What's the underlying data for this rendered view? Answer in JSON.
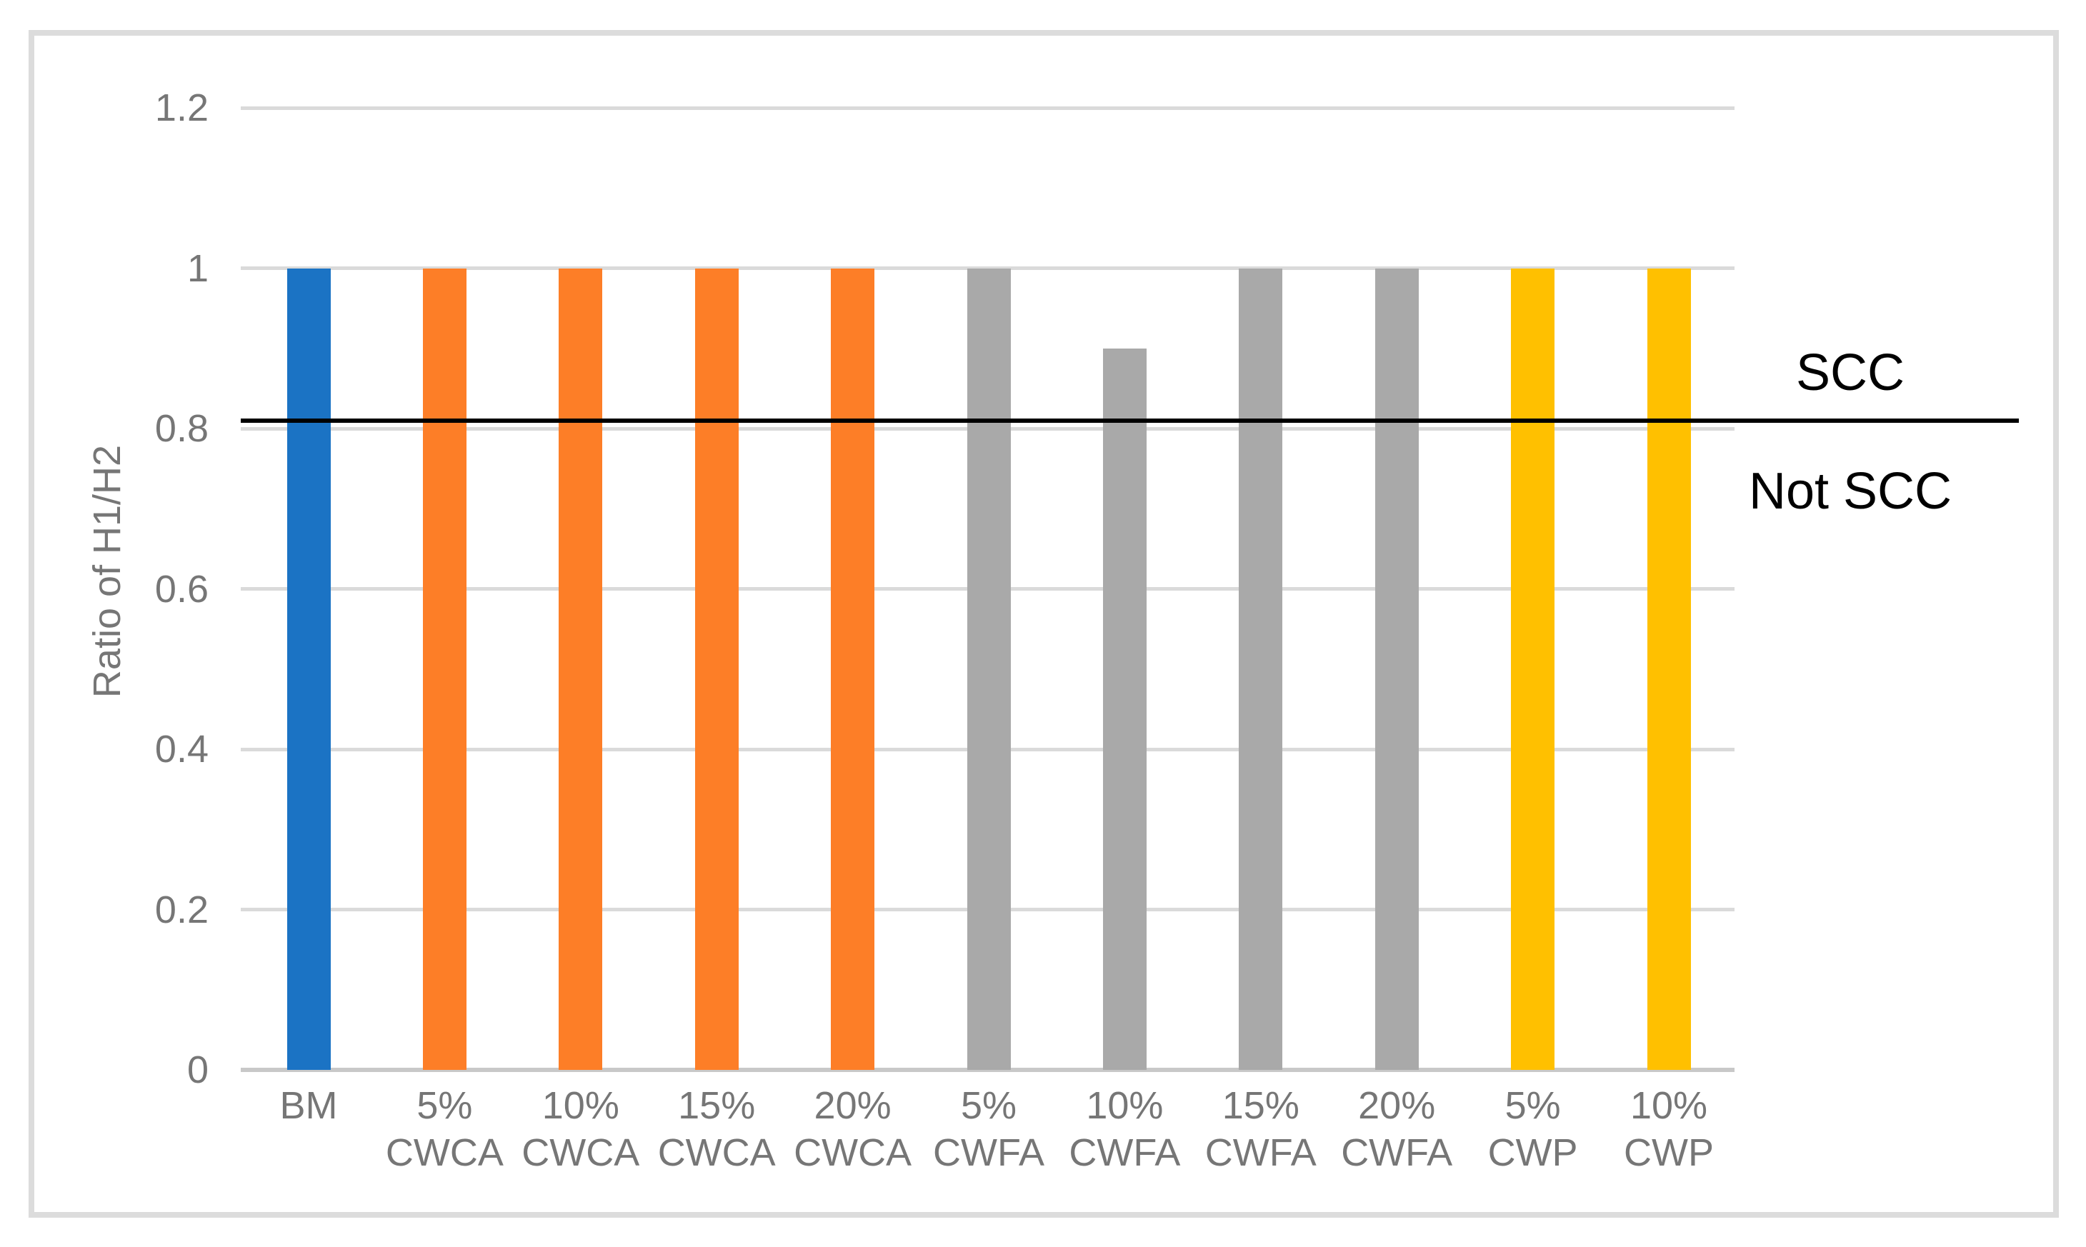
{
  "chart_data": {
    "type": "bar",
    "title": "",
    "xlabel": "",
    "ylabel": "Ratio of H1/H2",
    "ylim": [
      0,
      1.2
    ],
    "yticks": [
      0,
      0.2,
      0.4,
      0.6,
      0.8,
      1,
      1.2
    ],
    "ytick_labels": [
      "0",
      "0.2",
      "0.4",
      "0.6",
      "0.8",
      "1",
      "1.2"
    ],
    "grid": "horizontal",
    "legend": "none",
    "categories": [
      [
        "BM"
      ],
      [
        "5%",
        "CWCA"
      ],
      [
        "10%",
        "CWCA"
      ],
      [
        "15%",
        "CWCA"
      ],
      [
        "20%",
        "CWCA"
      ],
      [
        "5%",
        "CWFA"
      ],
      [
        "10%",
        "CWFA"
      ],
      [
        "15%",
        "CWFA"
      ],
      [
        "20%",
        "CWFA"
      ],
      [
        "5%",
        "CWP"
      ],
      [
        "10%",
        "CWP"
      ]
    ],
    "values": [
      1,
      1,
      1,
      1,
      1,
      1,
      0.9,
      1,
      1,
      1,
      1
    ],
    "bar_colors": [
      "#1B73C4",
      "#FD7E27",
      "#FD7E27",
      "#FD7E27",
      "#FD7E27",
      "#A9A9A9",
      "#A9A9A9",
      "#A9A9A9",
      "#A9A9A9",
      "#FFC000",
      "#FFC000"
    ],
    "threshold": {
      "value": 0.81,
      "label_above": "SCC",
      "label_below": "Not SCC",
      "color": "#000000"
    },
    "colors": {
      "gridline": "#DADADA",
      "axis_line": "#C8C8C8",
      "frame_border": "#DCDCDC",
      "tick_text": "#767676",
      "background": "#FFFFFF"
    }
  }
}
